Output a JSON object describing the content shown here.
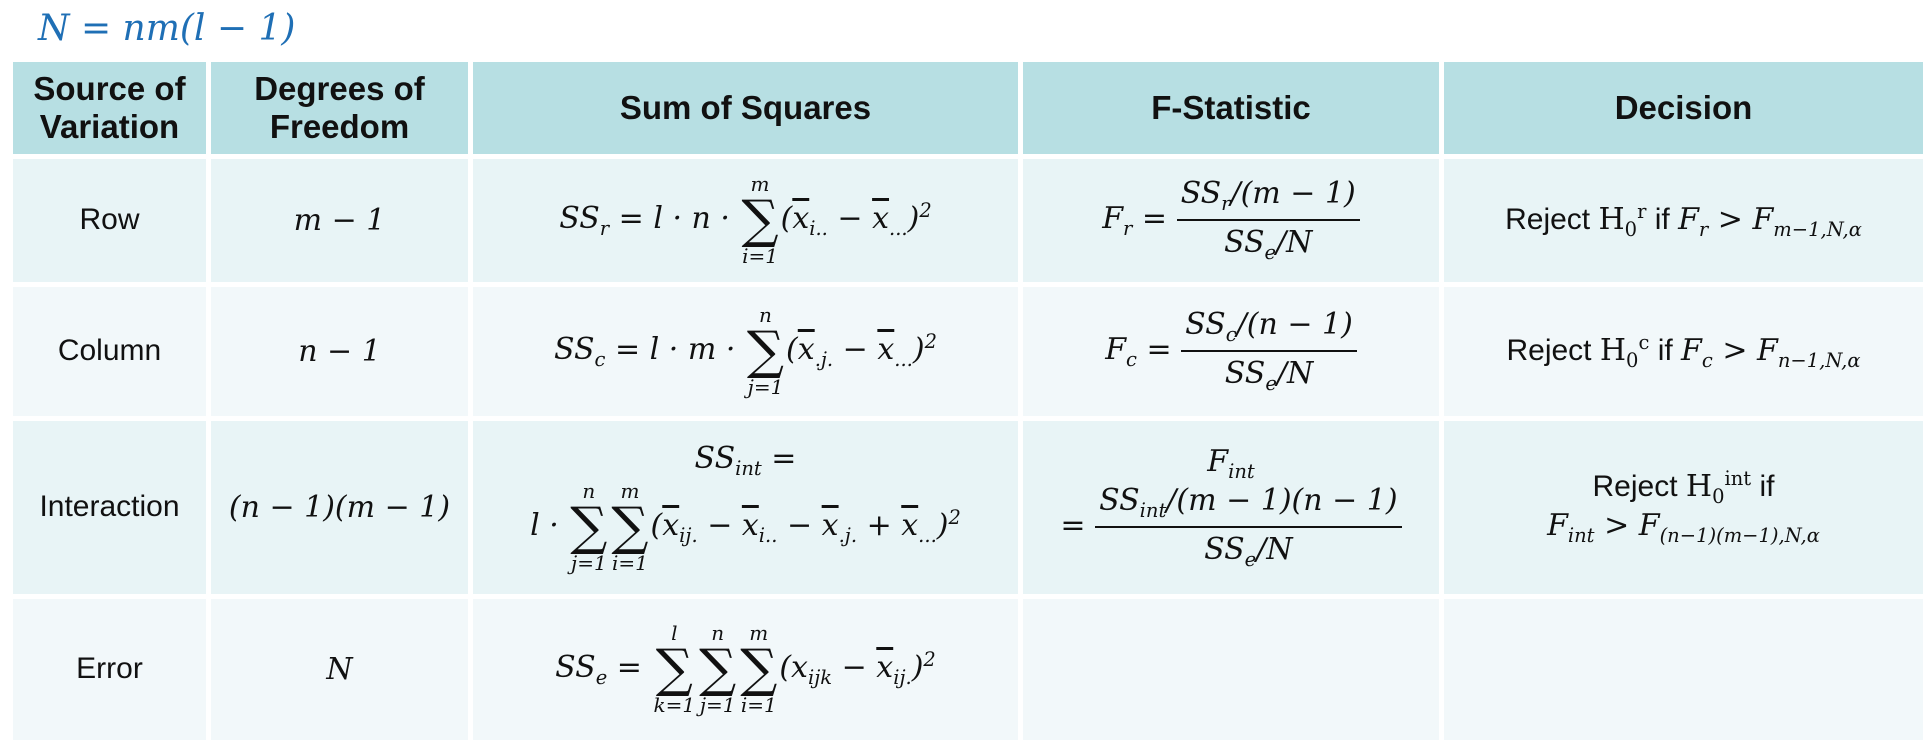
{
  "title_formula": "N = nm(l − 1)",
  "headers": {
    "source": "Source of Variation",
    "df": "Degrees of Freedom",
    "ss": "Sum of Squares",
    "f": "F-Statistic",
    "decision": "Decision"
  },
  "rows": [
    {
      "source": "Row",
      "df": "m − 1",
      "ss": "SSr = l · n · Σ_{i=1}^{m} (x̄i.. − x̄...)²",
      "f": "Fr = (SSr/(m − 1)) / (SSe/N)",
      "decision": "Reject H0^r if Fr > F_{m−1,N,α}"
    },
    {
      "source": "Column",
      "df": "n − 1",
      "ss": "SSc = l · m · Σ_{j=1}^{n} (x̄.j. − x̄...)²",
      "f": "Fc = (SSc/(n − 1)) / (SSe/N)",
      "decision": "Reject H0^c if Fc > F_{n−1,N,α}"
    },
    {
      "source": "Interaction",
      "df": "(n − 1)(m − 1)",
      "ss": "SSint = l · Σ_{j=1}^{n} Σ_{i=1}^{m} (x̄ij. − x̄i.. − x̄.j. + x̄...)²",
      "f": "Fint = (SSint/(m − 1)(n − 1)) / (SSe/N)",
      "decision": "Reject H0^int if Fint > F_{(n−1)(m−1),N,α}"
    },
    {
      "source": "Error",
      "df": "N",
      "ss": "SSe = Σ_{k=1}^{l} Σ_{j=1}^{n} Σ_{i=1}^{m} (xijk − x̄ij.)²",
      "f": "",
      "decision": ""
    }
  ],
  "colors": {
    "header_bg": "#b7dfe3",
    "row_bg": "#e8f4f6",
    "row_alt_bg": "#f2f8fa",
    "title": "#1f6fb5"
  }
}
